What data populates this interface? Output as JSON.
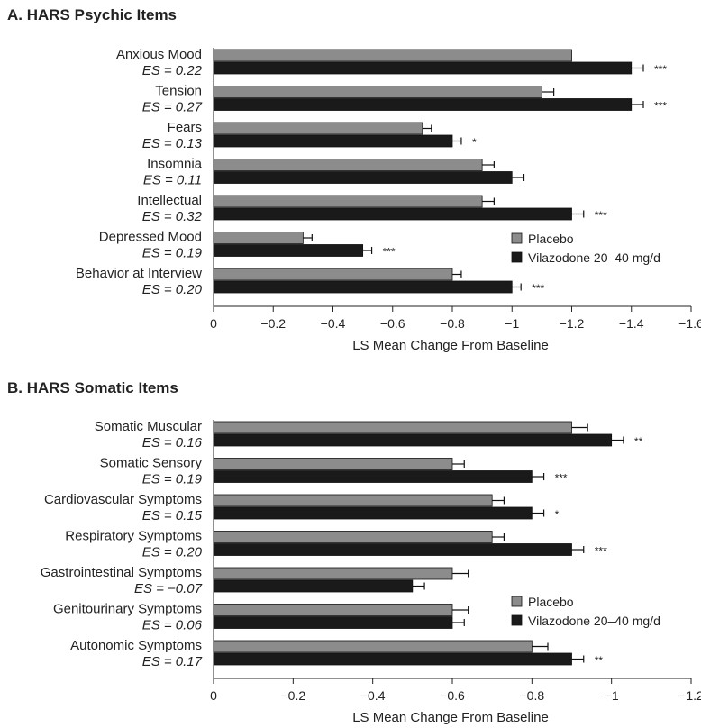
{
  "colors": {
    "placebo": "#8c8c8c",
    "vilazodone": "#1a1a1a",
    "axis": "#222222"
  },
  "chart_data": [
    {
      "type": "bar",
      "orientation": "horizontal",
      "title": "A. HARS Psychic Items",
      "xlabel": "LS Mean Change From Baseline",
      "ylabel": "",
      "xlim": [
        0,
        -1.6
      ],
      "xticks": [
        0,
        -0.2,
        -0.4,
        -0.6,
        -0.8,
        -1,
        -1.2,
        -1.4,
        -1.6
      ],
      "xtick_labels": [
        "0",
        "−0.2",
        "−0.4",
        "−0.6",
        "−0.8",
        "−1",
        "−1.2",
        "−1.4",
        "−1.6"
      ],
      "legend_position": "right",
      "categories": [
        "Anxious Mood",
        "Tension",
        "Fears",
        "Insomnia",
        "Intellectual",
        "Depressed Mood",
        "Behavior at Interview"
      ],
      "effect_sizes": [
        "ES = 0.22",
        "ES = 0.27",
        "ES = 0.13",
        "ES = 0.11",
        "ES = 0.32",
        "ES = 0.19",
        "ES = 0.20"
      ],
      "series": [
        {
          "name": "Placebo",
          "values": [
            -1.2,
            -1.1,
            -0.7,
            -0.9,
            -0.9,
            -0.3,
            -0.8
          ],
          "errors": [
            0,
            0.04,
            0.03,
            0.04,
            0.04,
            0.03,
            0.03
          ]
        },
        {
          "name": "Vilazodone 20–40 mg/d",
          "values": [
            -1.4,
            -1.4,
            -0.8,
            -1.0,
            -1.2,
            -0.5,
            -1.0
          ],
          "errors": [
            0.04,
            0.04,
            0.03,
            0.04,
            0.04,
            0.03,
            0.03
          ]
        }
      ],
      "significance": [
        "***",
        "***",
        "*",
        "",
        "***",
        "***",
        "***"
      ]
    },
    {
      "type": "bar",
      "orientation": "horizontal",
      "title": "B. HARS Somatic Items",
      "xlabel": "LS Mean Change From Baseline",
      "ylabel": "",
      "xlim": [
        0,
        -1.2
      ],
      "xticks": [
        0,
        -0.2,
        -0.4,
        -0.6,
        -0.8,
        -1,
        -1.2
      ],
      "xtick_labels": [
        "0",
        "−0.2",
        "−0.4",
        "−0.6",
        "−0.8",
        "−1",
        "−1.2"
      ],
      "legend_position": "right",
      "categories": [
        "Somatic Muscular",
        "Somatic Sensory",
        "Cardiovascular Symptoms",
        "Respiratory Symptoms",
        "Gastrointestinal Symptoms",
        "Genitourinary Symptoms",
        "Autonomic Symptoms"
      ],
      "effect_sizes": [
        "ES = 0.16",
        "ES = 0.19",
        "ES = 0.15",
        "ES = 0.20",
        "ES = −0.07",
        "ES = 0.06",
        "ES = 0.17"
      ],
      "series": [
        {
          "name": "Placebo",
          "values": [
            -0.9,
            -0.6,
            -0.7,
            -0.7,
            -0.6,
            -0.6,
            -0.8
          ],
          "errors": [
            0.04,
            0.03,
            0.03,
            0.03,
            0.04,
            0.04,
            0.04
          ]
        },
        {
          "name": "Vilazodone 20–40 mg/d",
          "values": [
            -1.0,
            -0.8,
            -0.8,
            -0.9,
            -0.5,
            -0.6,
            -0.9
          ],
          "errors": [
            0.03,
            0.03,
            0.03,
            0.03,
            0.03,
            0.03,
            0.03
          ]
        }
      ],
      "significance": [
        "**",
        "***",
        "*",
        "***",
        "",
        "",
        "**"
      ]
    }
  ]
}
